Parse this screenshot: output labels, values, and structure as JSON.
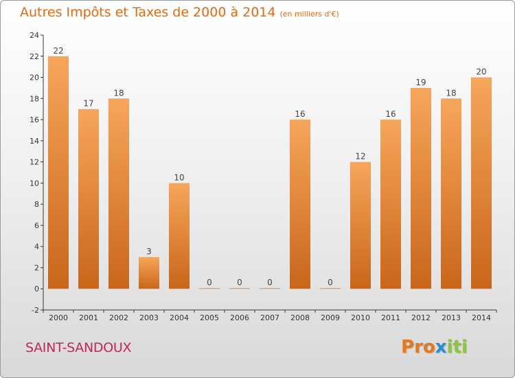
{
  "title": {
    "main": "Autres Impôts et Taxes de 2000 à 2014",
    "unit": "(en milliers d'€)"
  },
  "commune": "SAINT-SANDOUX",
  "brand": {
    "name": "Proxiti",
    "letters": [
      "P",
      "r",
      "o",
      "x",
      "i",
      "t",
      "i"
    ],
    "colors": [
      "#e8781c",
      "#e8781c",
      "#e8781c",
      "#2a8fd6",
      "#8cc63f",
      "#8cc63f",
      "#8cc63f"
    ]
  },
  "colors": {
    "bar_light": "#f7a65a",
    "bar_dark": "#c9661a",
    "title": "#e06a10",
    "commune": "#c4265a"
  },
  "chart_data": {
    "type": "bar",
    "categories": [
      "2000",
      "2001",
      "2002",
      "2003",
      "2004",
      "2005",
      "2006",
      "2007",
      "2008",
      "2009",
      "2010",
      "2011",
      "2012",
      "2013",
      "2014"
    ],
    "values": [
      22,
      17,
      18,
      3,
      10,
      0,
      0,
      0,
      16,
      0,
      12,
      16,
      19,
      18,
      20
    ],
    "title": "Autres Impôts et Taxes de 2000 à 2014",
    "xlabel": "",
    "ylabel": "",
    "ylim": [
      -2,
      24
    ],
    "yticks": [
      -2,
      0,
      2,
      4,
      6,
      8,
      10,
      12,
      14,
      16,
      18,
      20,
      22,
      24
    ],
    "grid": false,
    "legend": "none"
  }
}
